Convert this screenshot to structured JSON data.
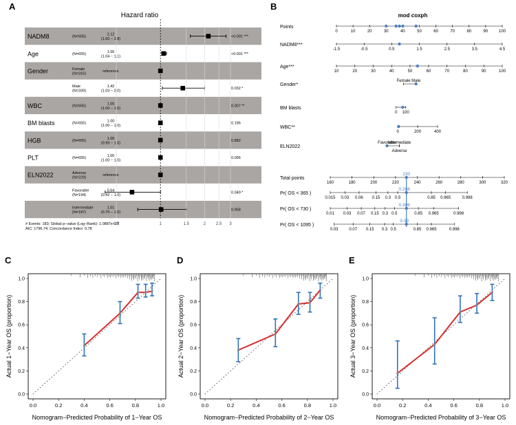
{
  "panel_labels": [
    "A",
    "B",
    "C",
    "D",
    "E"
  ],
  "chart_data": [
    {
      "type": "forest",
      "panel": "A",
      "title": "Hazard ratio",
      "axis_ticks": [
        0.5,
        1,
        1.5,
        2,
        2.5,
        3
      ],
      "axis_tick_labels": [
        "0.5",
        "1",
        "1.5",
        "2",
        "2.5",
        "3"
      ],
      "reference_value": 1,
      "rows": [
        {
          "var": "NADM8",
          "sub": "",
          "n": "(N=655)",
          "hr_label": "2.12",
          "ci_label": "(1.60 − 2.8)",
          "p": "<0.001 ***",
          "hr": 2.12,
          "lo": 1.6,
          "hi": 2.8,
          "shaded": true
        },
        {
          "var": "Age",
          "sub": "",
          "n": "(N=655)",
          "hr_label": "1.05",
          "ci_label": "(1.04 − 1.1)",
          "p": "<0.001 ***",
          "hr": 1.05,
          "lo": 1.04,
          "hi": 1.1,
          "shaded": false
        },
        {
          "var": "Gender",
          "sub": "Female",
          "n": "(N=316)",
          "hr_label": "reference",
          "ci_label": "",
          "p": "",
          "hr": 1.0,
          "lo": null,
          "hi": null,
          "shaded": true
        },
        {
          "var": "",
          "sub": "Male",
          "n": "(N=339)",
          "hr_label": "1.42",
          "ci_label": "(1.03 − 2.0)",
          "p": "0.032 *",
          "hr": 1.42,
          "lo": 1.03,
          "hi": 2.0,
          "shaded": false
        },
        {
          "var": "WBC",
          "sub": "",
          "n": "(N=655)",
          "hr_label": "1.00",
          "ci_label": "(1.00 − 1.0)",
          "p": "0.007 **",
          "hr": 1.0,
          "lo": 1.0,
          "hi": 1.0,
          "shaded": true
        },
        {
          "var": "BM blasts",
          "sub": "",
          "n": "(N=655)",
          "hr_label": "1.00",
          "ci_label": "(1.00 − 1.0)",
          "p": "0.196",
          "hr": 1.0,
          "lo": 1.0,
          "hi": 1.0,
          "shaded": false
        },
        {
          "var": "HGB",
          "sub": "",
          "n": "(N=655)",
          "hr_label": "1.00",
          "ci_label": "(0.99 − 1.0)",
          "p": "0.882",
          "hr": 1.0,
          "lo": 0.99,
          "hi": 1.0,
          "shaded": true
        },
        {
          "var": "PLT",
          "sub": "",
          "n": "(N=655)",
          "hr_label": "1.00",
          "ci_label": "(1.00 − 1.0)",
          "p": "0.096",
          "hr": 1.0,
          "lo": 1.0,
          "hi": 1.0,
          "shaded": false
        },
        {
          "var": "ELN2022",
          "sub": "Adverse",
          "n": "(N=229)",
          "hr_label": "reference",
          "ci_label": "",
          "p": "",
          "hr": 1.0,
          "lo": null,
          "hi": null,
          "shaded": true
        },
        {
          "var": "",
          "sub": "Favorable",
          "n": "(N=194)",
          "hr_label": "0.64",
          "ci_label": "(0.42 − 1.0)",
          "p": "0.049 *",
          "hr": 0.64,
          "lo": 0.42,
          "hi": 1.0,
          "shaded": false
        },
        {
          "var": "",
          "sub": "Intermediate",
          "n": "(N=187)",
          "hr_label": "1.01",
          "ci_label": "(0.70 − 1.5)",
          "p": "0.958",
          "hr": 1.01,
          "lo": 0.7,
          "hi": 1.5,
          "shaded": true
        }
      ],
      "footnotes": [
        "# Events: 183; Global p−value (Log−Rank): 1.0887e−27",
        "AIC: 1796.74; Concordance Index: 0.78"
      ]
    },
    {
      "type": "nomogram",
      "panel": "B",
      "title": "mod coxph",
      "scales": [
        {
          "label": "Points",
          "ticks": [
            "0",
            "10",
            "20",
            "30",
            "40",
            "50",
            "60",
            "70",
            "80",
            "90",
            "100"
          ],
          "points": [
            0,
            10,
            20,
            30,
            40,
            50,
            60,
            70,
            80,
            90,
            100
          ],
          "markers": [
            30,
            36,
            38,
            40,
            48
          ]
        },
        {
          "label": "NADM8***",
          "ticks": [
            "-1.5",
            "-0.5",
            "0.5",
            "1.5",
            "2.5",
            "3.5",
            "4.5"
          ],
          "points": [
            0,
            16.7,
            33.3,
            50,
            66.7,
            83.3,
            100
          ],
          "markers": [
            38
          ]
        },
        {
          "label": "Age***",
          "ticks": [
            "10",
            "20",
            "30",
            "40",
            "50",
            "60",
            "70",
            "80",
            "90",
            "100"
          ],
          "points": [
            0,
            11.1,
            22.2,
            33.3,
            44.4,
            55.6,
            66.7,
            77.8,
            88.9,
            100
          ],
          "markers": [
            48.9
          ]
        },
        {
          "label": "Gender*",
          "ticks": [
            "Female",
            "Male"
          ],
          "points": [
            40.5,
            48
          ],
          "markers": [
            48
          ]
        },
        {
          "label": "BM blasts",
          "ticks": [
            "0",
            "100"
          ],
          "points": [
            36,
            41.8
          ],
          "markers": [
            40
          ]
        },
        {
          "label": "WBC**",
          "ticks": [
            "0",
            "200",
            "400"
          ],
          "points": [
            37,
            49,
            61
          ],
          "markers": [
            37.5
          ]
        },
        {
          "label": "ELN2022",
          "ticks": [
            "Favorable",
            "Intermediate",
            "Adverse"
          ],
          "points": [
            30.5,
            38,
            38
          ],
          "markers": [
            30.5
          ]
        }
      ],
      "total_points": {
        "label": "Total points",
        "ticks": [
          "160",
          "180",
          "200",
          "220",
          "240",
          "260",
          "280",
          "300",
          "320"
        ],
        "values": [
          160,
          180,
          200,
          220,
          240,
          260,
          280,
          300,
          320
        ],
        "marker": 230,
        "marker_label": "230"
      },
      "survival_scales": [
        {
          "label": "Pr( OS < 365 )",
          "ticks": [
            "0.015",
            "0.03",
            "0.06",
            "0.15",
            "0.3",
            "0.5",
            "0.85",
            "0.965",
            "0.998"
          ],
          "totals": [
            160,
            173.5,
            186.5,
            202,
            213,
            222,
            253,
            266,
            286
          ],
          "marker_label": "0.208"
        },
        {
          "label": "Pr( OS < 730 )",
          "ticks": [
            "0.01",
            "0.03",
            "0.07",
            "0.15",
            "0.3",
            "0.5",
            "0.85",
            "0.965",
            "0.998"
          ],
          "totals": [
            160,
            175.5,
            188.5,
            201,
            210.5,
            219,
            241,
            255,
            278
          ],
          "marker_label": "0.306"
        },
        {
          "label": "Pr( OS < 1095 )",
          "ticks": [
            "0.03",
            "0.07",
            "0.15",
            "0.3",
            "0.5",
            "0.85",
            "0.965",
            "0.998"
          ],
          "totals": [
            163.5,
            181,
            196.5,
            210,
            218,
            240,
            253,
            274
          ],
          "marker_label": "0.39"
        }
      ]
    },
    {
      "type": "calibration",
      "panel": "C",
      "xlabel": "Nomogram−Predicted Probability of 1−Year OS",
      "ylabel": "Actual 1−Year OS (proportion)",
      "xlim": [
        0,
        1
      ],
      "ylim": [
        0,
        1
      ],
      "x_ticks": [
        "0.0",
        "0.2",
        "0.4",
        "0.6",
        "0.8",
        "1.0"
      ],
      "y_ticks": [
        "0.0",
        "0.2",
        "0.4",
        "0.6",
        "0.8",
        "1.0"
      ],
      "points": [
        {
          "x": 0.4,
          "y": 0.42,
          "lo": 0.33,
          "hi": 0.52
        },
        {
          "x": 0.68,
          "y": 0.7,
          "lo": 0.61,
          "hi": 0.8
        },
        {
          "x": 0.82,
          "y": 0.88,
          "lo": 0.83,
          "hi": 0.95
        },
        {
          "x": 0.88,
          "y": 0.88,
          "lo": 0.84,
          "hi": 0.95
        },
        {
          "x": 0.93,
          "y": 0.89,
          "lo": 0.85,
          "hi": 0.96
        }
      ]
    },
    {
      "type": "calibration",
      "panel": "D",
      "xlabel": "Nomogram−Predicted Probability of 2−Year OS",
      "ylabel": "Actual 2−Year OS (proportion)",
      "xlim": [
        0,
        1
      ],
      "ylim": [
        0,
        1
      ],
      "x_ticks": [
        "0.0",
        "0.2",
        "0.4",
        "0.6",
        "0.8",
        "1.0"
      ],
      "y_ticks": [
        "0.0",
        "0.2",
        "0.4",
        "0.6",
        "0.8",
        "1.0"
      ],
      "points": [
        {
          "x": 0.26,
          "y": 0.38,
          "lo": 0.28,
          "hi": 0.48
        },
        {
          "x": 0.55,
          "y": 0.52,
          "lo": 0.41,
          "hi": 0.65
        },
        {
          "x": 0.73,
          "y": 0.78,
          "lo": 0.69,
          "hi": 0.88
        },
        {
          "x": 0.82,
          "y": 0.79,
          "lo": 0.71,
          "hi": 0.88
        },
        {
          "x": 0.9,
          "y": 0.9,
          "lo": 0.83,
          "hi": 0.96
        }
      ]
    },
    {
      "type": "calibration",
      "panel": "E",
      "xlabel": "Nomogram−Predicted Probability of 3−Year OS",
      "ylabel": "Actual 3−Year OS (proportion)",
      "xlim": [
        0,
        1
      ],
      "ylim": [
        0,
        1
      ],
      "x_ticks": [
        "0.0",
        "0.2",
        "0.4",
        "0.6",
        "0.8",
        "1.0"
      ],
      "y_ticks": [
        "0.0",
        "0.2",
        "0.4",
        "0.6",
        "0.8",
        "1.0"
      ],
      "points": [
        {
          "x": 0.16,
          "y": 0.18,
          "lo": 0.05,
          "hi": 0.46
        },
        {
          "x": 0.45,
          "y": 0.43,
          "lo": 0.26,
          "hi": 0.66
        },
        {
          "x": 0.65,
          "y": 0.71,
          "lo": 0.62,
          "hi": 0.85
        },
        {
          "x": 0.78,
          "y": 0.77,
          "lo": 0.7,
          "hi": 0.87
        },
        {
          "x": 0.9,
          "y": 0.88,
          "lo": 0.81,
          "hi": 0.95
        }
      ]
    }
  ]
}
